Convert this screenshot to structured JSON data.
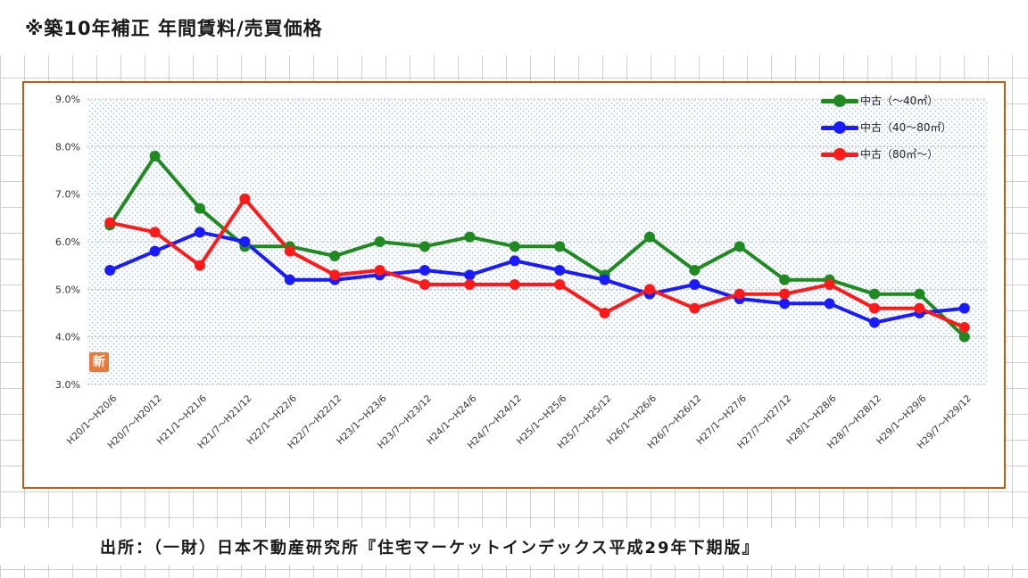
{
  "page": {
    "title": "※築10年補正 年間賃料/売買価格",
    "source": "出所：（一財）日本不動産研究所『住宅マーケットインデックス平成29年下期版』",
    "stamp": "新"
  },
  "colors": {
    "frame": "#c55a11",
    "series": [
      "#1f8a1f",
      "#1a1aff",
      "#ff1a1a"
    ]
  },
  "chart_data": {
    "type": "line",
    "title": "",
    "xlabel": "",
    "ylabel": "",
    "ylim": [
      3.0,
      9.0
    ],
    "yticks": [
      "9.0%",
      "8.0%",
      "7.0%",
      "6.0%",
      "5.0%",
      "4.0%",
      "3.0%"
    ],
    "grid": true,
    "legend_position": "top-right",
    "categories": [
      "H20/1～H20/6",
      "H20/7～H20/12",
      "H21/1～H21/6",
      "H21/7～H21/12",
      "H22/1～H22/6",
      "H22/7～H22/12",
      "H23/1～H23/6",
      "H23/7～H23/12",
      "H24/1～H24/6",
      "H24/7～H24/12",
      "H25/1～H25/6",
      "H25/7～H25/12",
      "H26/1～H26/6",
      "H26/7～H26/12",
      "H27/1～H27/6",
      "H27/7～H27/12",
      "H28/1～H28/6",
      "H28/7～H28/12",
      "H29/1～H29/6",
      "H29/7～H29/12"
    ],
    "series": [
      {
        "name": "中古（～40㎡）",
        "values": [
          6.35,
          7.8,
          6.7,
          5.9,
          5.9,
          5.7,
          6.0,
          5.9,
          6.1,
          5.9,
          5.9,
          5.3,
          6.1,
          5.4,
          5.9,
          5.2,
          5.2,
          4.9,
          4.9,
          4.0
        ]
      },
      {
        "name": "中古（40～80㎡）",
        "values": [
          5.4,
          5.8,
          6.2,
          6.0,
          5.2,
          5.2,
          5.3,
          5.4,
          5.3,
          5.6,
          5.4,
          5.2,
          4.9,
          5.1,
          4.8,
          4.7,
          4.7,
          4.3,
          4.5,
          4.6
        ]
      },
      {
        "name": "中古（80㎡～）",
        "values": [
          6.4,
          6.2,
          5.5,
          6.9,
          5.8,
          5.3,
          5.4,
          5.1,
          5.1,
          5.1,
          5.1,
          4.5,
          5.0,
          4.6,
          4.9,
          4.9,
          5.1,
          4.6,
          4.6,
          4.2
        ]
      }
    ]
  }
}
